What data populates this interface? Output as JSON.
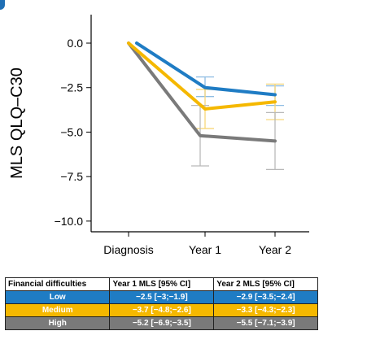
{
  "chart_data": {
    "type": "line",
    "ylabel": "MLS QLQ–C30",
    "xlabel": "",
    "categories": [
      "Diagnosis",
      "Year 1",
      "Year 2"
    ],
    "yticks": [
      "0.0",
      "−2.5",
      "−5.0",
      "−7.5",
      "−10.0"
    ],
    "ytick_values": [
      0,
      -2.5,
      -5,
      -7.5,
      -10
    ],
    "ylim": [
      -10.6,
      1.6
    ],
    "grid": false,
    "series": [
      {
        "name": "Low",
        "color": "#1f7cc4",
        "values": [
          0,
          -2.5,
          -2.9
        ],
        "ci_low": [
          null,
          -3.0,
          -3.5
        ],
        "ci_high": [
          null,
          -1.9,
          -2.4
        ],
        "error_color": "#8fbde3"
      },
      {
        "name": "Medium",
        "color": "#f5b800",
        "values": [
          0,
          -3.7,
          -3.3
        ],
        "ci_low": [
          null,
          -4.8,
          -4.3
        ],
        "ci_high": [
          null,
          -2.6,
          -2.3
        ],
        "error_color": "#f7d77a"
      },
      {
        "name": "High",
        "color": "#7a7a7a",
        "values": [
          0,
          -5.2,
          -5.5
        ],
        "ci_low": [
          null,
          -6.9,
          -7.1
        ],
        "ci_high": [
          null,
          -3.5,
          -3.9
        ],
        "error_color": "#b9b9b9"
      }
    ]
  },
  "table": {
    "headers": [
      "Financial difficulties",
      "Year 1 MLS [95% CI]",
      "Year 2 MLS [95% CI]"
    ],
    "rows": [
      {
        "label": "Low",
        "year1": "−2.5 [−3;−1.9]",
        "year2": "−2.9 [−3.5;−2.4]",
        "color": "#1f7cc4"
      },
      {
        "label": "Medium",
        "year1": "−3.7 [−4.8;−2.6]",
        "year2": "−3.3 [−4.3;−2.3]",
        "color": "#f5b800"
      },
      {
        "label": "High",
        "year1": "−5.2 [−6.9;−3.5]",
        "year2": "−5.5 [−7.1;−3.9]",
        "color": "#7a7a7a"
      }
    ]
  }
}
